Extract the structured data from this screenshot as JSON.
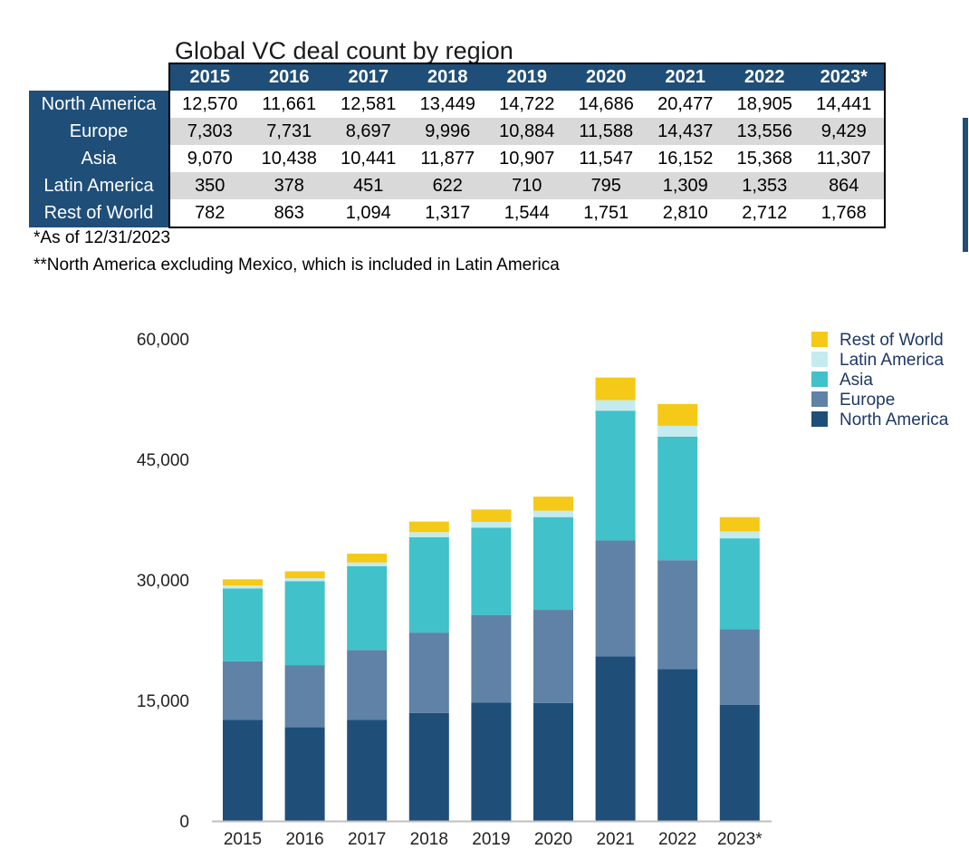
{
  "title": "Global VC deal count by region",
  "table": {
    "years": [
      "2015",
      "2016",
      "2017",
      "2018",
      "2019",
      "2020",
      "2021",
      "2022",
      "2023*"
    ],
    "rows": [
      {
        "label": "North America",
        "values": [
          "12,570",
          "11,661",
          "12,581",
          "13,449",
          "14,722",
          "14,686",
          "20,477",
          "18,905",
          "14,441"
        ]
      },
      {
        "label": "Europe",
        "values": [
          "7,303",
          "7,731",
          "8,697",
          "9,996",
          "10,884",
          "11,588",
          "14,437",
          "13,556",
          "9,429"
        ]
      },
      {
        "label": "Asia",
        "values": [
          "9,070",
          "10,438",
          "10,441",
          "11,877",
          "10,907",
          "11,547",
          "16,152",
          "15,368",
          "11,307"
        ]
      },
      {
        "label": "Latin America",
        "values": [
          "350",
          "378",
          "451",
          "622",
          "710",
          "795",
          "1,309",
          "1,353",
          "864"
        ]
      },
      {
        "label": "Rest of World",
        "values": [
          "782",
          "863",
          "1,094",
          "1,317",
          "1,544",
          "1,751",
          "2,810",
          "2,712",
          "1,768"
        ]
      }
    ]
  },
  "notes": {
    "n1": "*As of 12/31/2023",
    "n2": "**North America excluding Mexico, which is included in Latin America"
  },
  "chart_data": {
    "type": "bar",
    "stacked": true,
    "categories": [
      "2015",
      "2016",
      "2017",
      "2018",
      "2019",
      "2020",
      "2021",
      "2022",
      "2023*"
    ],
    "series": [
      {
        "name": "North America",
        "color": "#1f4e79",
        "values": [
          12570,
          11661,
          12581,
          13449,
          14722,
          14686,
          20477,
          18905,
          14441
        ]
      },
      {
        "name": "Europe",
        "color": "#5f82a6",
        "values": [
          7303,
          7731,
          8697,
          9996,
          10884,
          11588,
          14437,
          13556,
          9429
        ]
      },
      {
        "name": "Asia",
        "color": "#41c1c9",
        "values": [
          9070,
          10438,
          10441,
          11877,
          10907,
          11547,
          16152,
          15368,
          11307
        ]
      },
      {
        "name": "Latin America",
        "color": "#c4ecee",
        "values": [
          350,
          378,
          451,
          622,
          710,
          795,
          1309,
          1353,
          864
        ]
      },
      {
        "name": "Rest of World",
        "color": "#f5c918",
        "values": [
          782,
          863,
          1094,
          1317,
          1544,
          1751,
          2810,
          2712,
          1768
        ]
      }
    ],
    "ylim": [
      0,
      60000
    ],
    "yticks": [
      0,
      15000,
      30000,
      45000,
      60000
    ],
    "ytick_labels": [
      "0",
      "15,000",
      "30,000",
      "45,000",
      "60,000"
    ],
    "legend_position": "top-right",
    "grid": false
  }
}
